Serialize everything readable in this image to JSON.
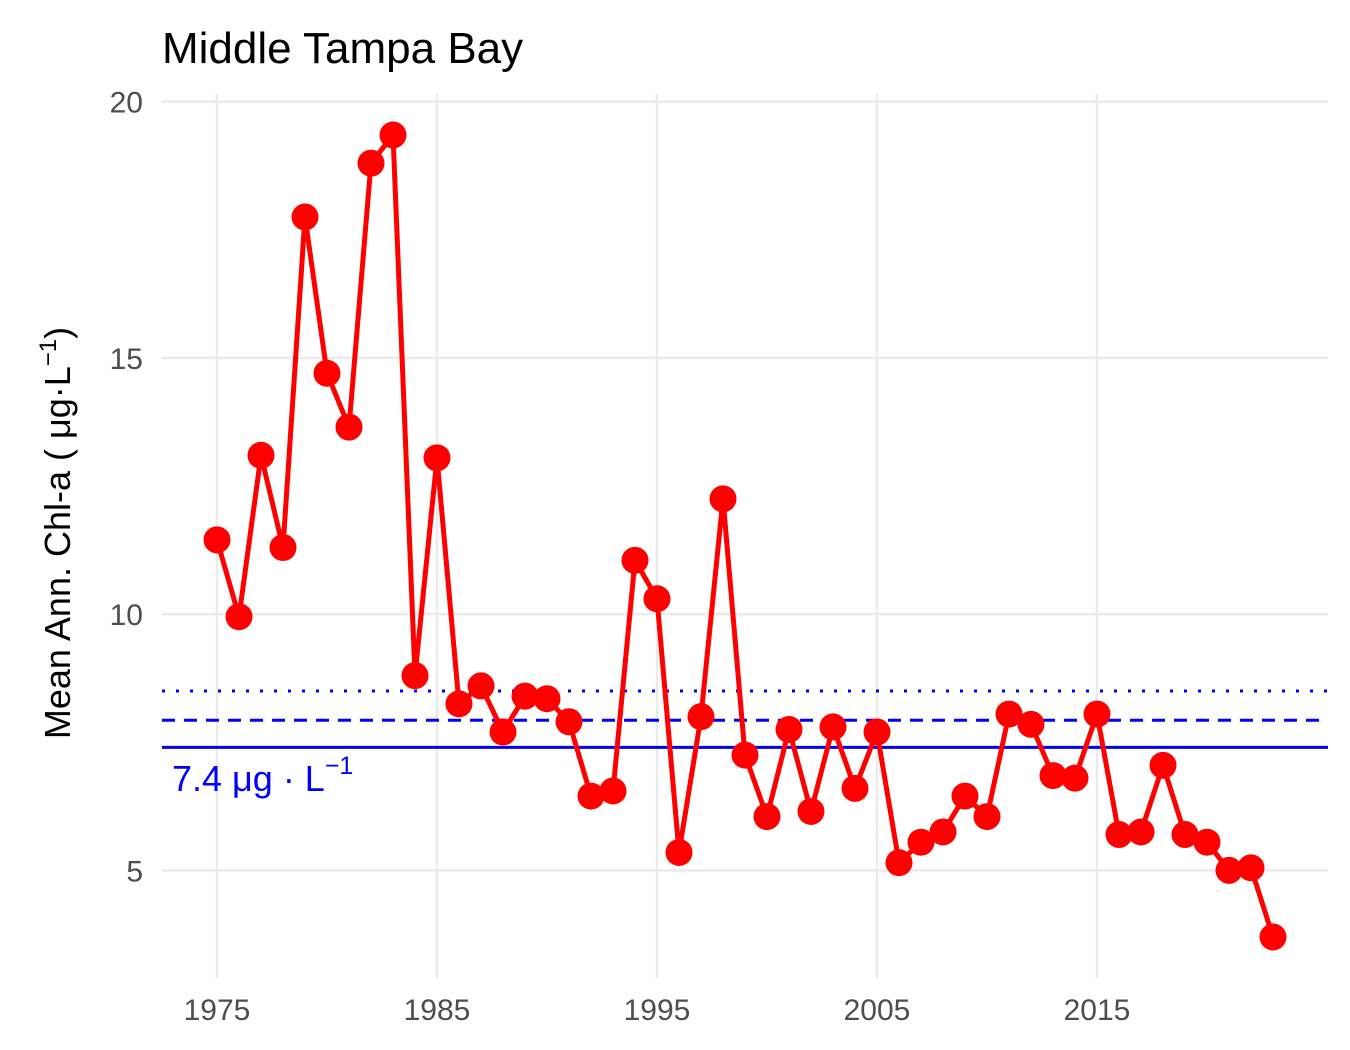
{
  "chart_data": {
    "type": "line",
    "title": "Middle Tampa Bay",
    "xlabel": "",
    "ylabel_parts": {
      "main": "Mean Ann. Chl-a ( ",
      "unit": "μg·L",
      "sup": "−1",
      "close": ")"
    },
    "xlim": [
      1972.5,
      2025.5
    ],
    "ylim": [
      2.9,
      20.15
    ],
    "x_ticks": [
      1975,
      1985,
      1995,
      2005,
      2015
    ],
    "x_tick_labels": [
      "1975",
      "1985",
      "1995",
      "2005",
      "2015"
    ],
    "y_ticks": [
      5,
      10,
      15,
      20
    ],
    "y_tick_labels": [
      "5",
      "10",
      "15",
      "20"
    ],
    "grid": true,
    "series": [
      {
        "color": "#ff0000",
        "x": [
          1975,
          1976,
          1977,
          1978,
          1979,
          1980,
          1981,
          1982,
          1983,
          1984,
          1985,
          1986,
          1987,
          1988,
          1989,
          1990,
          1991,
          1992,
          1993,
          1994,
          1995,
          1996,
          1997,
          1998,
          1999,
          2000,
          2001,
          2002,
          2003,
          2004,
          2005,
          2006,
          2007,
          2008,
          2009,
          2010,
          2011,
          2012,
          2013,
          2014,
          2015,
          2016,
          2017,
          2018,
          2019,
          2020,
          2021,
          2022,
          2023
        ],
        "values": [
          11.45,
          9.95,
          13.1,
          11.3,
          17.75,
          14.7,
          13.65,
          18.8,
          19.35,
          8.8,
          13.05,
          8.25,
          8.6,
          7.7,
          8.4,
          8.35,
          7.9,
          6.45,
          6.55,
          11.05,
          10.3,
          5.35,
          8.0,
          12.25,
          7.25,
          6.05,
          7.75,
          6.15,
          7.8,
          6.6,
          7.7,
          5.15,
          5.55,
          5.75,
          6.45,
          6.05,
          8.05,
          7.85,
          6.85,
          6.8,
          8.05,
          5.7,
          5.75,
          7.05,
          5.7,
          5.55,
          5.0,
          5.05,
          3.7
        ]
      }
    ],
    "reference_lines": [
      {
        "value": 7.4,
        "style": "solid",
        "color": "#0000ff"
      },
      {
        "value": 7.93,
        "style": "dashed",
        "color": "#0000ff"
      },
      {
        "value": 8.5,
        "style": "dotted",
        "color": "#0000ff"
      }
    ],
    "annotation": {
      "main": "7.4 μg · L",
      "sup": "−1",
      "color": "#0000ff"
    }
  }
}
